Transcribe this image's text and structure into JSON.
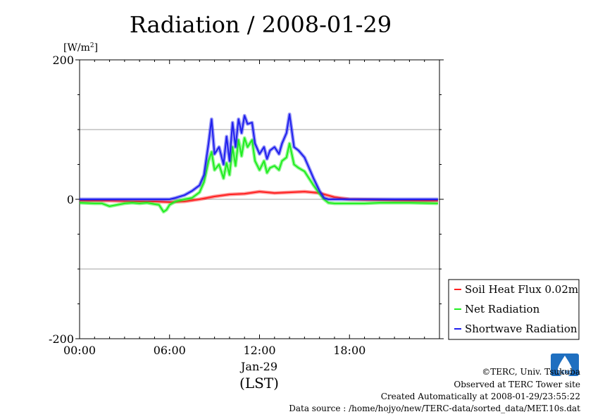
{
  "chart_data": {
    "type": "line",
    "title": "Radiation / 2008-01-29",
    "ylabel_unit": "[W/m",
    "ylabel_sup": "2",
    "ylabel_close": "]",
    "ylim": [
      -200,
      200
    ],
    "xlim": [
      0,
      24
    ],
    "y_ticks": [
      {
        "value": 200,
        "label": "200"
      },
      {
        "value": 0,
        "label": "0"
      },
      {
        "value": -200,
        "label": "-200"
      }
    ],
    "x_ticks": [
      {
        "value": 0,
        "label": "00:00"
      },
      {
        "value": 6,
        "label": "06:00"
      },
      {
        "value": 12,
        "label": "12:00"
      },
      {
        "value": 18,
        "label": "18:00"
      }
    ],
    "x_date_label": "Jan-29",
    "x_axis_label": "(LST)",
    "grid": "horizontal",
    "legend_position": "bottom-right",
    "series": [
      {
        "name": "Soil Heat Flux 0.02m",
        "color": "#ff2020",
        "points": [
          [
            0,
            -2
          ],
          [
            2,
            -2
          ],
          [
            4,
            -3
          ],
          [
            5,
            -3
          ],
          [
            6,
            -4
          ],
          [
            7,
            -3
          ],
          [
            8,
            0
          ],
          [
            9,
            4
          ],
          [
            10,
            7
          ],
          [
            11,
            8
          ],
          [
            12,
            11
          ],
          [
            13,
            9
          ],
          [
            14,
            10
          ],
          [
            15,
            11
          ],
          [
            16,
            9
          ],
          [
            16.5,
            6
          ],
          [
            17,
            3
          ],
          [
            18,
            0
          ],
          [
            20,
            -1
          ],
          [
            22,
            -2
          ],
          [
            23.9,
            -2
          ]
        ]
      },
      {
        "name": "Net Radiation",
        "color": "#20ee20",
        "points": [
          [
            0,
            -5
          ],
          [
            1,
            -6
          ],
          [
            1.5,
            -6
          ],
          [
            2,
            -10
          ],
          [
            2.5,
            -8
          ],
          [
            3,
            -6
          ],
          [
            3.5,
            -5
          ],
          [
            4,
            -6
          ],
          [
            4.5,
            -5
          ],
          [
            5,
            -7
          ],
          [
            5.3,
            -8
          ],
          [
            5.6,
            -18
          ],
          [
            5.8,
            -15
          ],
          [
            6,
            -8
          ],
          [
            6.4,
            -3
          ],
          [
            7,
            0
          ],
          [
            7.5,
            2
          ],
          [
            8,
            10
          ],
          [
            8.3,
            25
          ],
          [
            8.6,
            55
          ],
          [
            8.8,
            68
          ],
          [
            9,
            42
          ],
          [
            9.3,
            50
          ],
          [
            9.6,
            30
          ],
          [
            9.8,
            52
          ],
          [
            10,
            35
          ],
          [
            10.2,
            75
          ],
          [
            10.4,
            48
          ],
          [
            10.6,
            85
          ],
          [
            10.8,
            62
          ],
          [
            11,
            88
          ],
          [
            11.2,
            75
          ],
          [
            11.5,
            85
          ],
          [
            11.7,
            55
          ],
          [
            12,
            42
          ],
          [
            12.3,
            55
          ],
          [
            12.5,
            38
          ],
          [
            12.7,
            45
          ],
          [
            13,
            48
          ],
          [
            13.3,
            42
          ],
          [
            13.5,
            55
          ],
          [
            13.8,
            60
          ],
          [
            14,
            80
          ],
          [
            14.3,
            50
          ],
          [
            14.6,
            45
          ],
          [
            15,
            40
          ],
          [
            15.3,
            30
          ],
          [
            15.6,
            20
          ],
          [
            16,
            8
          ],
          [
            16.3,
            0
          ],
          [
            16.6,
            -5
          ],
          [
            17,
            -6
          ],
          [
            18,
            -6
          ],
          [
            19,
            -6
          ],
          [
            20,
            -5
          ],
          [
            22,
            -5
          ],
          [
            23.9,
            -6
          ]
        ]
      },
      {
        "name": "Shortwave Radiation",
        "color": "#2020ee",
        "points": [
          [
            0,
            0
          ],
          [
            6,
            0
          ],
          [
            6.4,
            2
          ],
          [
            7,
            6
          ],
          [
            7.5,
            12
          ],
          [
            8,
            20
          ],
          [
            8.3,
            35
          ],
          [
            8.6,
            80
          ],
          [
            8.8,
            115
          ],
          [
            9,
            65
          ],
          [
            9.3,
            75
          ],
          [
            9.6,
            50
          ],
          [
            9.8,
            90
          ],
          [
            10,
            55
          ],
          [
            10.2,
            110
          ],
          [
            10.4,
            75
          ],
          [
            10.6,
            115
          ],
          [
            10.8,
            95
          ],
          [
            11,
            120
          ],
          [
            11.2,
            108
          ],
          [
            11.5,
            110
          ],
          [
            11.7,
            80
          ],
          [
            12,
            65
          ],
          [
            12.3,
            75
          ],
          [
            12.5,
            58
          ],
          [
            12.7,
            70
          ],
          [
            13,
            75
          ],
          [
            13.3,
            65
          ],
          [
            13.5,
            80
          ],
          [
            13.8,
            95
          ],
          [
            14,
            122
          ],
          [
            14.3,
            75
          ],
          [
            14.6,
            70
          ],
          [
            15,
            60
          ],
          [
            15.3,
            45
          ],
          [
            15.6,
            30
          ],
          [
            16,
            12
          ],
          [
            16.3,
            2
          ],
          [
            16.6,
            0
          ],
          [
            18,
            0
          ],
          [
            23.9,
            0
          ]
        ]
      }
    ]
  },
  "footer": {
    "copyright": "©TERC, Univ. Tsukuba",
    "observed": "Observed at TERC Tower site",
    "created": "Created Automatically at 2008-01-29/23:55:22",
    "source": "Data source : /home/hojyo/new/TERC-data/sorted_data/MET.10s.dat",
    "logo_text": "TERC"
  }
}
